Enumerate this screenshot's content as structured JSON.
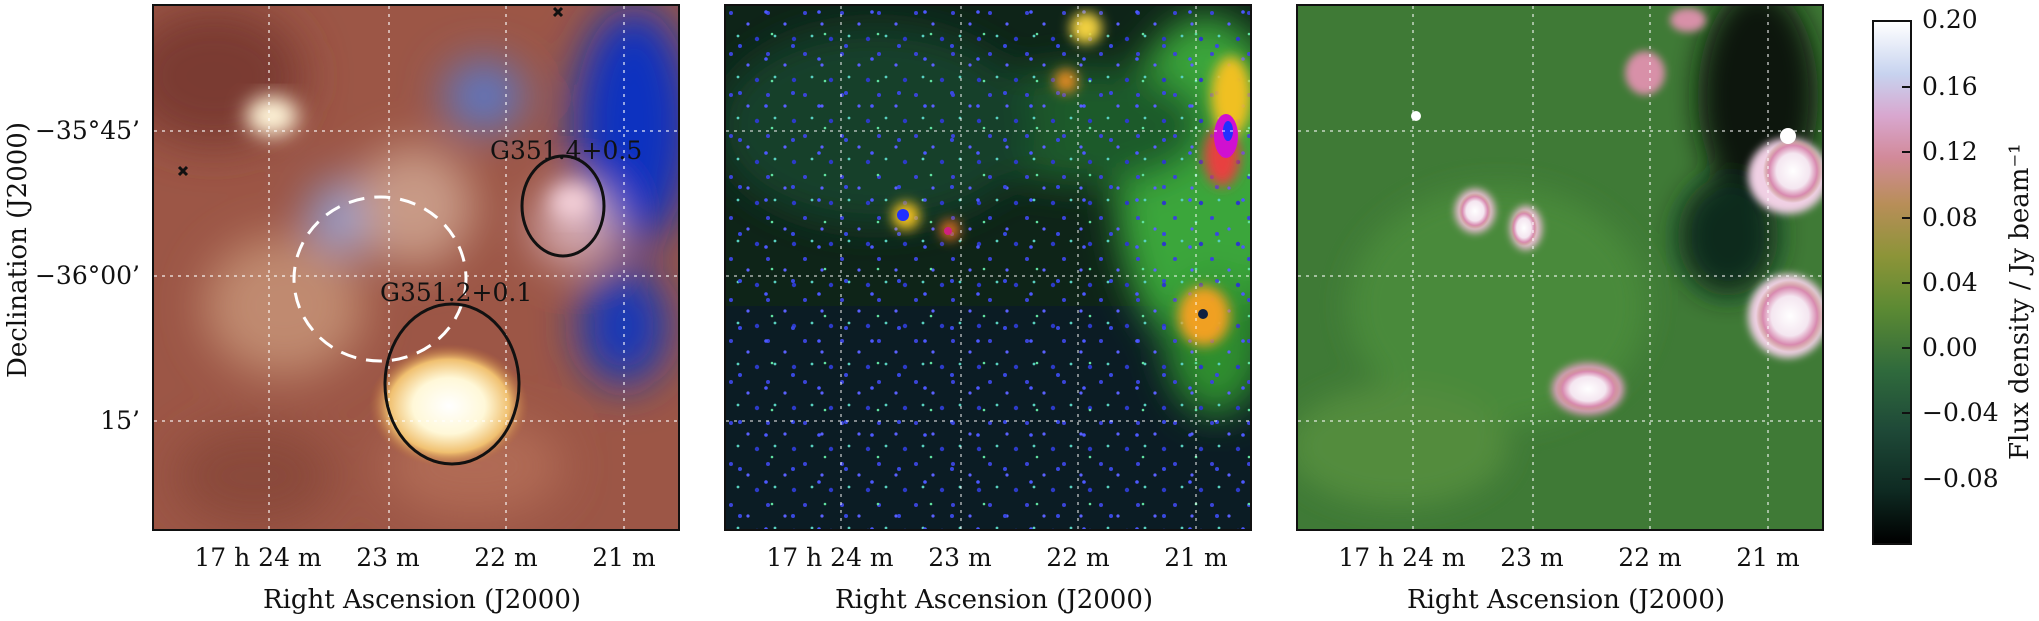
{
  "x_axis_label": "Right Ascension (J2000)",
  "y_axis_label": "Declination (J2000)",
  "ra_ticks": [
    "17 h 24 m",
    "23 m",
    "22 m",
    "21 m"
  ],
  "dec_ticks": [
    "−35°45’",
    "−36°00’",
    "15’"
  ],
  "region_labels": [
    "G351.4+0.5",
    "G351.2+0.1"
  ],
  "colorbar": {
    "label": "Flux density / Jy beam⁻¹",
    "ticks": [
      "0.20",
      "0.16",
      "0.12",
      "0.08",
      "0.04",
      "0.00",
      "−0.04",
      "−0.08"
    ]
  }
}
